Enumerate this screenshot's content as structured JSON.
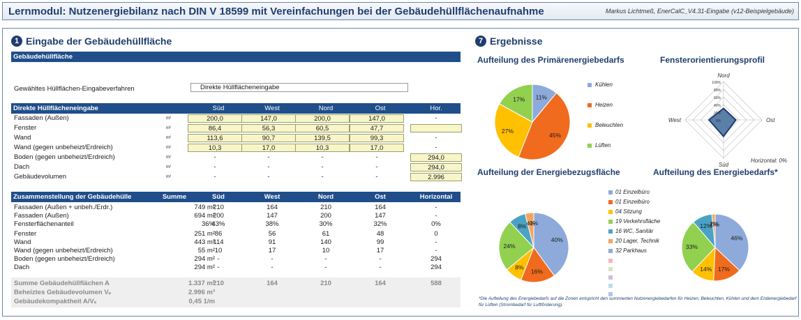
{
  "header": {
    "title": "Lernmodul: Nutzenergiebilanz nach DIN V 18599 mit Vereinfachungen bei der Gebäudehüllflächenaufnahme",
    "author": "Markus Lichtmeß, EnerCalC_V4.31-Eingabe (v12-Beispielgebäude)"
  },
  "left": {
    "num": "1",
    "title": "Eingabe der Gebäudehüllfläche",
    "gh": {
      "label": "Gebäudehüllfläche",
      "method_label": "Gewähltes Hüllflächen-Eingabeverfahren",
      "method_value": "Direkte Hüllflächeneingabe"
    },
    "direct": {
      "header": [
        "Direkte Hüllflächeneingabe",
        "Süd",
        "West",
        "Nord",
        "Ost",
        "Hor."
      ],
      "rows": [
        {
          "label": "Fassaden (Außen)",
          "unit": "m²",
          "v": [
            "200,0",
            "147,0",
            "200,0",
            "147,0",
            "-"
          ]
        },
        {
          "label": "Fenster",
          "unit": "m²",
          "v": [
            "86,4",
            "56,3",
            "60,5",
            "47,7",
            ""
          ]
        },
        {
          "label": "Wand",
          "unit": "m²",
          "v": [
            "113,6",
            "90,7",
            "139,5",
            "99,3",
            "-"
          ]
        },
        {
          "label": "Wand (gegen unbeheizt/Erdreich)",
          "unit": "m²",
          "v": [
            "10,3",
            "17,0",
            "10,3",
            "17,0",
            "-"
          ]
        },
        {
          "label": "Boden (gegen unbeheizt/Erdreich)",
          "unit": "m²",
          "v": [
            "-",
            "-",
            "-",
            "-",
            "294,0"
          ]
        },
        {
          "label": "Dach",
          "unit": "m²",
          "v": [
            "-",
            "-",
            "-",
            "-",
            "294,0"
          ]
        },
        {
          "label": "Gebäudevolumen",
          "unit": "m³",
          "v": [
            "-",
            "-",
            "-",
            "-",
            "2.996"
          ]
        }
      ]
    },
    "summary": {
      "header": [
        "Zusammenstellung der Gebäudehülle",
        "Summe",
        "Süd",
        "West",
        "Nord",
        "Ost",
        "Horizontal"
      ],
      "rows": [
        {
          "label": "Fassaden (Außen + unbeh./Erdr.)",
          "v": [
            "749 m²",
            "210",
            "164",
            "210",
            "164",
            "-"
          ]
        },
        {
          "label": "Fassaden (Außen)",
          "v": [
            "694 m²",
            "200",
            "147",
            "200",
            "147",
            "-"
          ]
        },
        {
          "label": "Fensterflächenanteil",
          "v": [
            "36%",
            "43%",
            "38%",
            "30%",
            "32%",
            "0%"
          ]
        },
        {
          "label": "Fenster",
          "v": [
            "251 m²",
            "86",
            "56",
            "61",
            "48",
            "0"
          ]
        },
        {
          "label": "Wand",
          "v": [
            "443 m²",
            "114",
            "91",
            "140",
            "99",
            "-"
          ]
        },
        {
          "label": "Wand (gegen unbeheizt/Erdreich)",
          "v": [
            "55 m²",
            "10",
            "17",
            "10",
            "17",
            "-"
          ]
        },
        {
          "label": "Boden (gegen unbeheizt/Erdreich)",
          "v": [
            "294 m²",
            "-",
            "-",
            "-",
            "-",
            "294"
          ]
        },
        {
          "label": "Dach",
          "v": [
            "294 m²",
            "-",
            "-",
            "-",
            "-",
            "294"
          ]
        }
      ],
      "totals": [
        {
          "label": "Summe Gebäudehüllflächen A",
          "v": [
            "1.337 m²",
            "210",
            "164",
            "210",
            "164",
            "588"
          ]
        },
        {
          "label": "Beheiztes Gebäudevolumen Vₑ",
          "v": [
            "2.996 m³",
            "",
            "",
            "",
            "",
            ""
          ]
        },
        {
          "label": "Gebäudekompaktheit A/Vₑ",
          "v": [
            "0,45 1/m",
            "",
            "",
            "",
            "",
            ""
          ]
        }
      ]
    }
  },
  "right": {
    "num": "7",
    "title": "Ergebnisse",
    "pie1": {
      "title": "Aufteilung des Primärenergiebedarfs",
      "legend": [
        "Kühlen",
        "Heizen",
        "Beleuchten",
        "Lüften"
      ]
    },
    "radar": {
      "title": "Fensterorientierungsprofil",
      "labels": [
        "Nord",
        "Ost",
        "Süd",
        "West"
      ],
      "ticks": [
        "100%",
        "80%",
        "60%",
        "40%",
        "20%",
        "0%"
      ],
      "hor": "Horizontal: 0%"
    },
    "pie2": {
      "title": "Aufteilung der Energiebezugsfläche"
    },
    "pie3": {
      "title": "Aufteilung des Energiebedarfs*"
    },
    "legend2": [
      "01 Einzelbüro",
      "01 Einzelbüro",
      "04 Sitzung",
      "19 Verkehrsfläche",
      "16 WC, Sanitär",
      "20 Lager, Technik",
      "32 Parkhaus"
    ],
    "footnote": "*Die Aufteilung des Energiebedarfs auf die Zonen entspricht den summierten Nutzenergiebedarfen für Heizen, Beleuchten, Kühlen und dem Endenergiebedarf für Lüften (Strombedarf für Luftförderung)."
  },
  "chart_data": [
    {
      "type": "pie",
      "title": "Aufteilung des Primärenergiebedarfs",
      "labels": [
        "Kühlen",
        "Heizen",
        "Beleuchten",
        "Lüften"
      ],
      "values": [
        11,
        45,
        27,
        17
      ],
      "colors": [
        "#8eaadb",
        "#f06b1e",
        "#ffc000",
        "#92d050"
      ]
    },
    {
      "type": "radar",
      "title": "Fensterorientierungsprofil",
      "categories": [
        "Nord",
        "Ost",
        "Süd",
        "West"
      ],
      "values": [
        30,
        32,
        43,
        38
      ],
      "rmax": 100
    },
    {
      "type": "pie",
      "title": "Aufteilung der Energiebezugsfläche",
      "labels": [
        "01 Einzelbüro",
        "01 Einzelbüro",
        "04 Sitzung",
        "19 Verkehrsfläche",
        "16 WC, Sanitär",
        "20 Lager, Technik",
        "32 Parkhaus"
      ],
      "values": [
        40,
        16,
        8,
        24,
        8,
        4,
        0
      ],
      "colors": [
        "#8eaadb",
        "#f06b1e",
        "#ffc000",
        "#92d050",
        "#4aa3c4",
        "#f4a460",
        "#8eaadb"
      ]
    },
    {
      "type": "pie",
      "title": "Aufteilung des Energiebedarfs*",
      "labels": [
        "01 Einzelbüro",
        "01 Einzelbüro",
        "04 Sitzung",
        "19 Verkehrsfläche",
        "16 WC, Sanitär",
        "20 Lager, Technik",
        "32 Parkhaus"
      ],
      "values": [
        46,
        17,
        14,
        33,
        12,
        2,
        0
      ],
      "colors": [
        "#8eaadb",
        "#f06b1e",
        "#ffc000",
        "#92d050",
        "#4aa3c4",
        "#f4a460",
        "#8eaadb"
      ]
    }
  ]
}
